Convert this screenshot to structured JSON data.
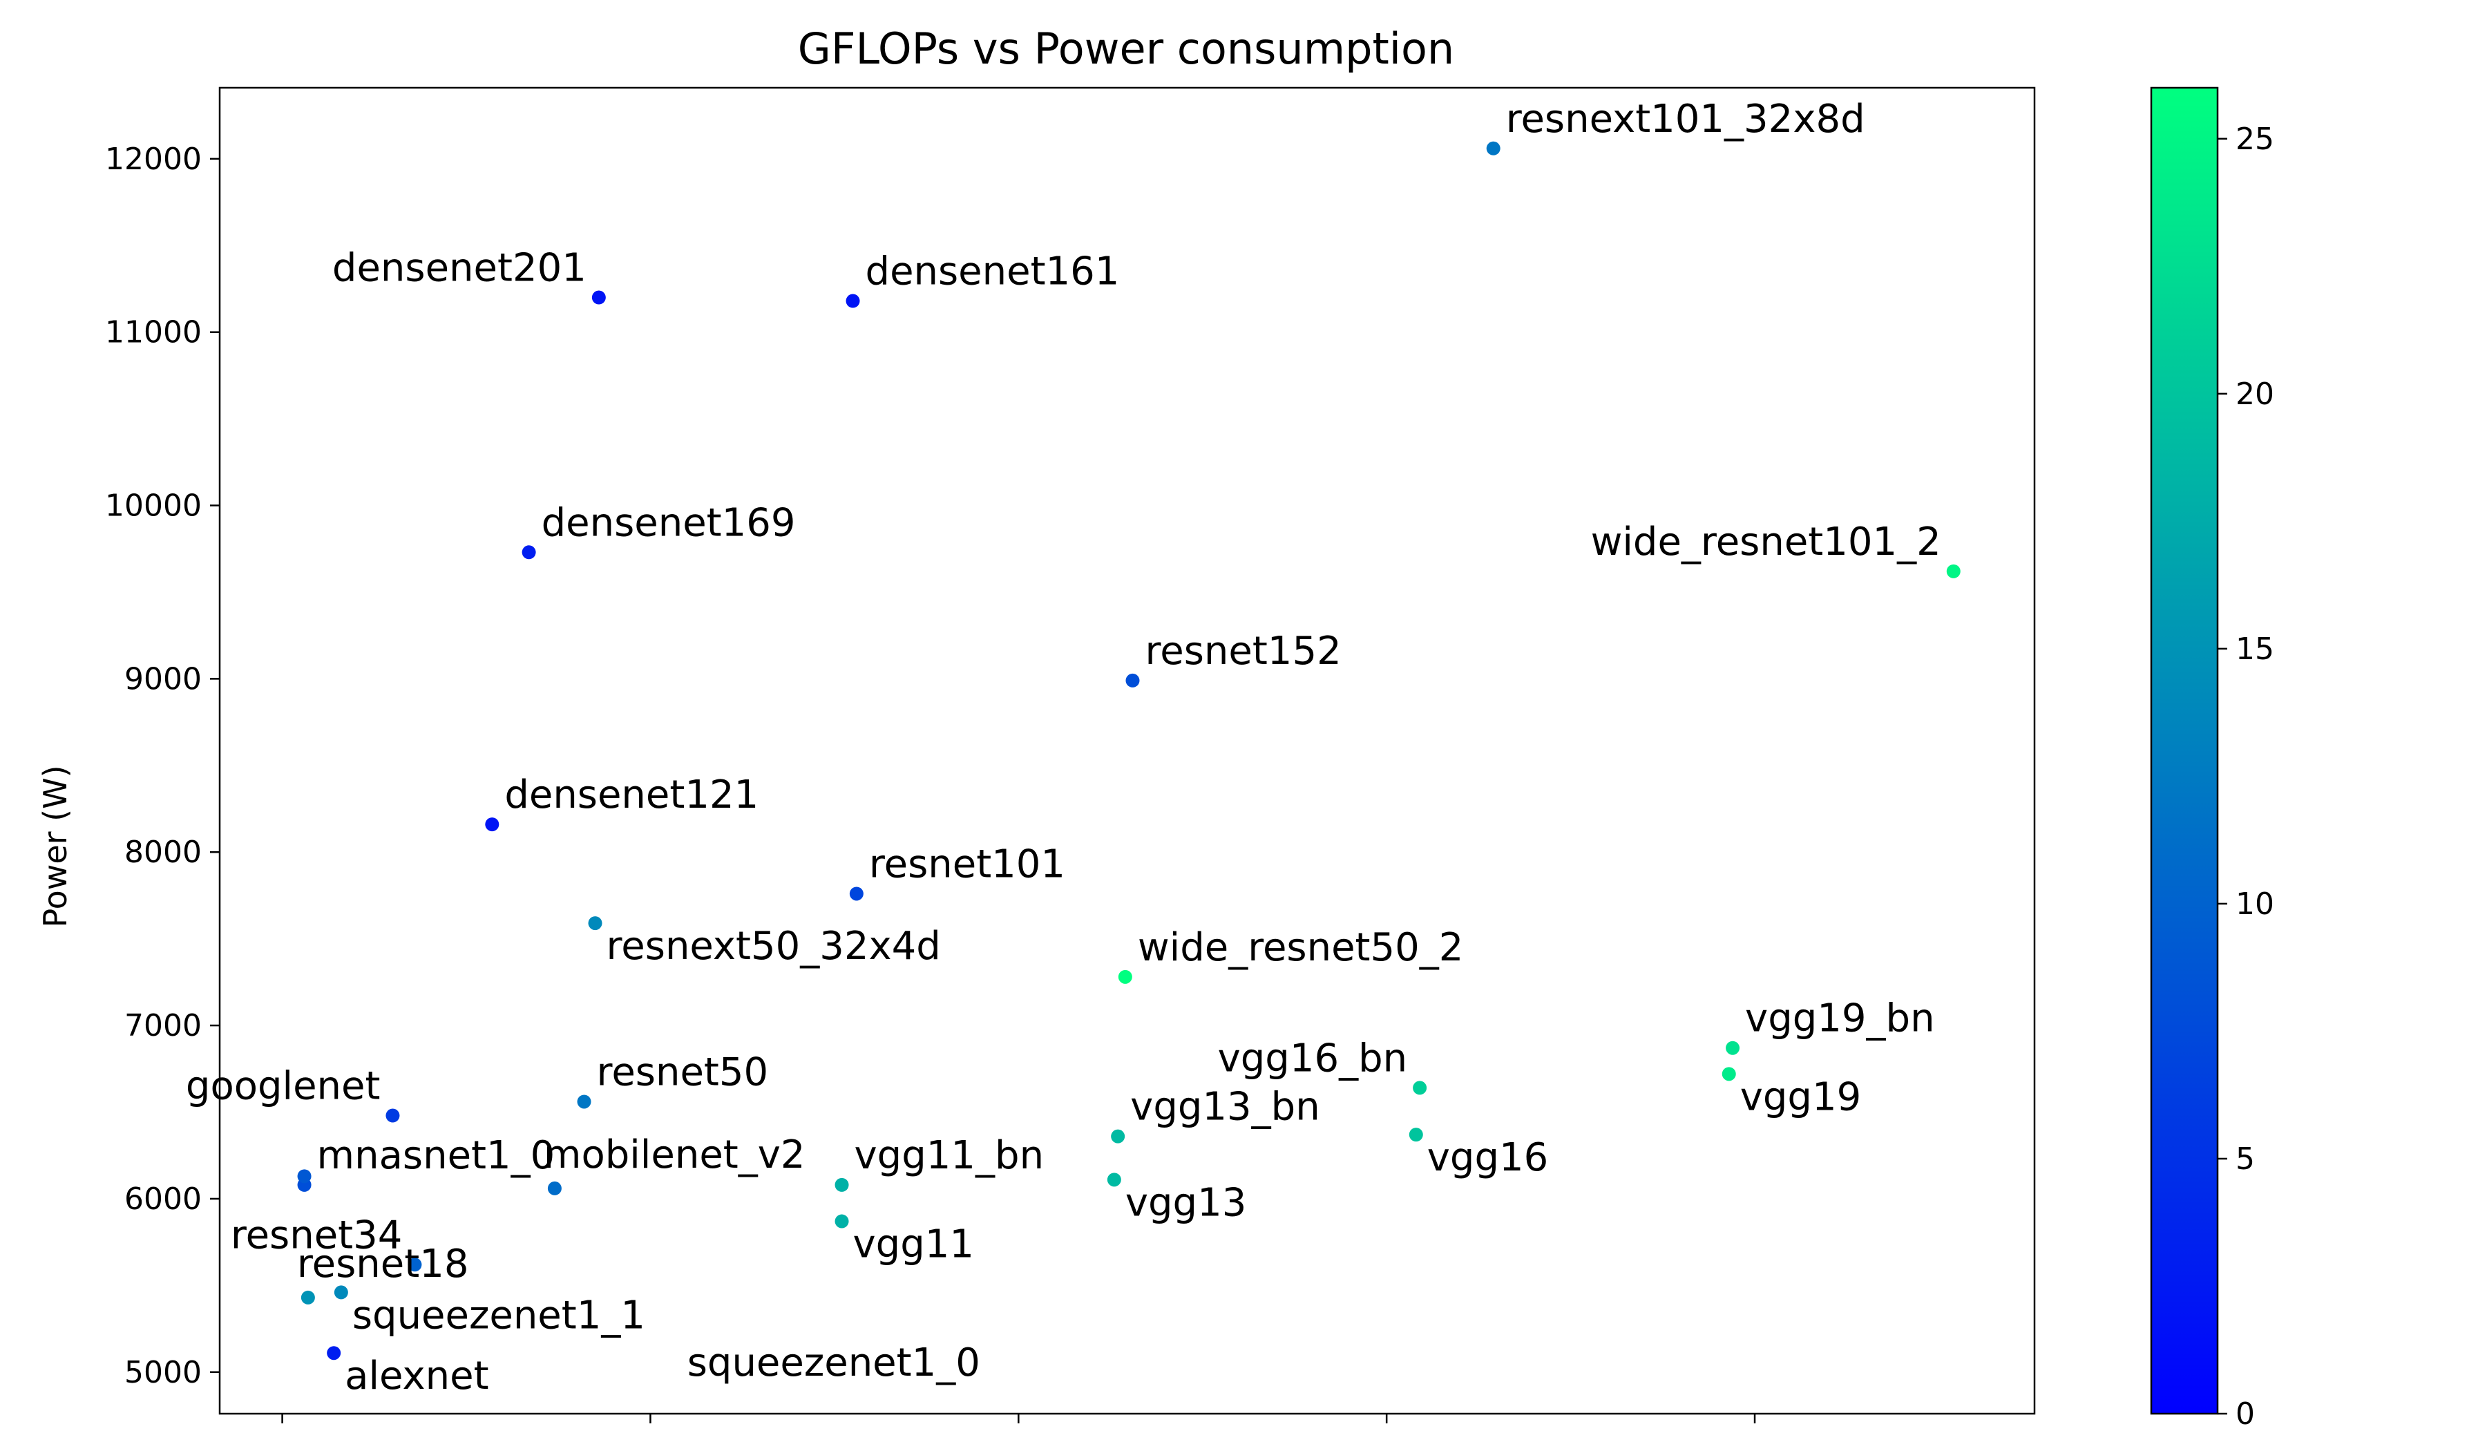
{
  "chart_data": {
    "type": "scatter",
    "title": "GFLOPs vs Power consumption",
    "xlabel": "",
    "ylabel": "Power (W)",
    "x_tick_labels": [],
    "x_tick_positions": [
      0,
      1,
      2,
      3,
      4
    ],
    "xlim": [
      -0.17,
      4.76
    ],
    "ylim": [
      4760,
      12410
    ],
    "yticks": [
      5000,
      6000,
      7000,
      8000,
      9000,
      10000,
      11000,
      12000
    ],
    "grid": false,
    "colorbar": {
      "min": 0,
      "max": 26,
      "ticks": [
        0,
        5,
        10,
        15,
        20,
        25
      ],
      "colors": [
        "#0000ff",
        "#00ff80"
      ]
    },
    "points": [
      {
        "name": "resnext101_32x8d",
        "x": 3.29,
        "y": 12060,
        "c": 12,
        "label_side": "right"
      },
      {
        "name": "densenet201",
        "x": 0.86,
        "y": 11200,
        "c": 2,
        "label_side": "left"
      },
      {
        "name": "densenet161",
        "x": 1.55,
        "y": 11180,
        "c": 2,
        "label_side": "right"
      },
      {
        "name": "densenet169",
        "x": 0.67,
        "y": 9730,
        "c": 3,
        "label_side": "right"
      },
      {
        "name": "wide_resnet101_2",
        "x": 4.54,
        "y": 9620,
        "c": 25,
        "label_side": "left"
      },
      {
        "name": "resnet152",
        "x": 2.31,
        "y": 8990,
        "c": 8,
        "label_side": "right"
      },
      {
        "name": "densenet121",
        "x": 0.57,
        "y": 8160,
        "c": 2,
        "label_side": "right"
      },
      {
        "name": "resnet101",
        "x": 1.56,
        "y": 7760,
        "c": 7,
        "label_side": "right"
      },
      {
        "name": "resnext50_32x4d",
        "x": 0.85,
        "y": 7590,
        "c": 14,
        "label_side": "below"
      },
      {
        "name": "wide_resnet50_2",
        "x": 2.29,
        "y": 7280,
        "c": 26,
        "label_side": "right"
      },
      {
        "name": "vgg19_bn",
        "x": 3.94,
        "y": 6870,
        "c": 23,
        "label_side": "right"
      },
      {
        "name": "vgg19",
        "x": 3.93,
        "y": 6720,
        "c": 24,
        "label_side": "below"
      },
      {
        "name": "vgg16_bn",
        "x": 3.09,
        "y": 6640,
        "c": 21,
        "label_side": "left"
      },
      {
        "name": "googlenet",
        "x": 0.3,
        "y": 6480,
        "c": 6,
        "label_side": "left"
      },
      {
        "name": "resnet50",
        "x": 0.82,
        "y": 6560,
        "c": 12,
        "label_side": "right"
      },
      {
        "name": "vgg16",
        "x": 3.08,
        "y": 6370,
        "c": 20,
        "label_side": "below"
      },
      {
        "name": "vgg13_bn",
        "x": 2.27,
        "y": 6360,
        "c": 19,
        "label_side": "right"
      },
      {
        "name": "mobilenet_v2",
        "x": 0.74,
        "y": 6060,
        "c": 11,
        "label_side": "above"
      },
      {
        "name": "mnasnet1_0",
        "x": 0.06,
        "y": 6080,
        "c": 8,
        "label_side": "right"
      },
      {
        "name": "vgg11_bn",
        "x": 1.52,
        "y": 6080,
        "c": 18,
        "label_side": "right"
      },
      {
        "name": "vgg13",
        "x": 2.26,
        "y": 6110,
        "c": 19,
        "label_side": "below"
      },
      {
        "name": "resnet34",
        "x": 0.36,
        "y": 5620,
        "c": 10,
        "label_side": "left"
      },
      {
        "name": "vgg11",
        "x": 1.52,
        "y": 5870,
        "c": 18,
        "label_side": "below"
      },
      {
        "name": "resnet18",
        "x": 0.07,
        "y": 5430,
        "c": 15,
        "label_side": "above"
      },
      {
        "name": "squeezenet1_1",
        "x": 0.16,
        "y": 5460,
        "c": 14,
        "label_side": "below"
      },
      {
        "name": "alexnet",
        "x": 0.14,
        "y": 5110,
        "c": 3,
        "label_side": "below"
      },
      {
        "name": "squeezenet1_0",
        "x": 0.06,
        "y": 6130,
        "c": 9,
        "label_side": "none"
      }
    ],
    "extra_labels": [
      {
        "text": "squeezenet1_0",
        "x": 1.1,
        "y": 4980
      }
    ]
  }
}
